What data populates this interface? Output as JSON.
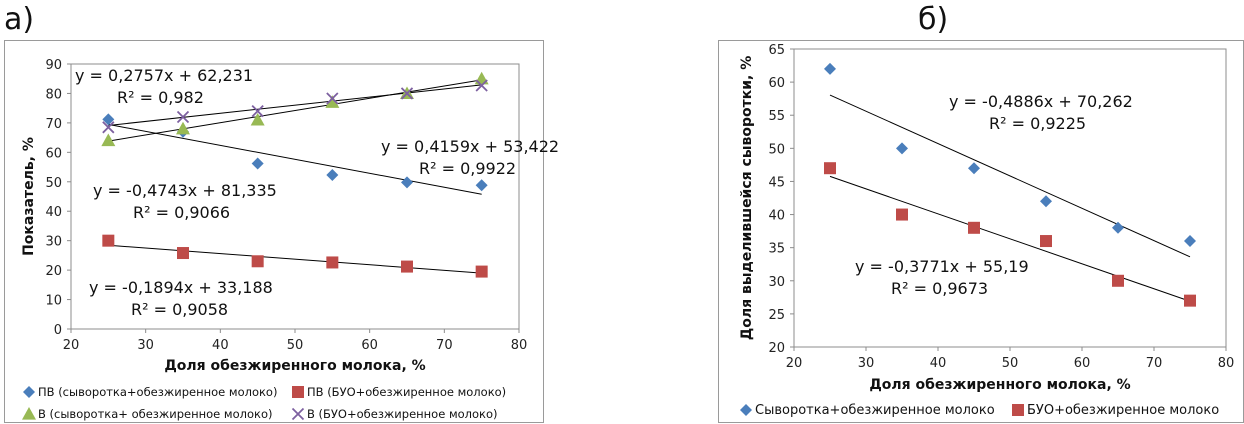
{
  "panel_labels": [
    "а)",
    "б)"
  ],
  "chart_data": [
    {
      "type": "scatter",
      "xlabel": "Доля обезжиренного молока, %",
      "ylabel": "Показатель, %",
      "xlim": [
        20,
        80
      ],
      "ylim": [
        0,
        90
      ],
      "x_ticks": [
        20,
        30,
        40,
        50,
        60,
        70,
        80
      ],
      "y_ticks": [
        0,
        10,
        20,
        30,
        40,
        50,
        60,
        70,
        80,
        90
      ],
      "grid": false,
      "legend_position": "bottom",
      "series": [
        {
          "name": "ПВ (сыворотка+обезжиренное молоко)",
          "marker": "diamond",
          "color": "#4a7ebb",
          "x": [
            25,
            35,
            45,
            55,
            65,
            75
          ],
          "y": [
            71.2,
            67,
            56.2,
            52.3,
            49.8,
            48.8
          ],
          "trendline": {
            "slope": -0.4743,
            "intercept": 81.335
          }
        },
        {
          "name": "ПВ (БУО+обезжиренное молоко)",
          "marker": "square",
          "color": "#be4b48",
          "x": [
            25,
            35,
            45,
            55,
            65,
            75
          ],
          "y": [
            30,
            25.8,
            23,
            22.6,
            21.2,
            19.5
          ],
          "trendline": {
            "slope": -0.1894,
            "intercept": 33.188
          }
        },
        {
          "name": "В (сыворотка+ обезжиренное молоко)",
          "marker": "triangle",
          "color": "#98b954",
          "x": [
            25,
            35,
            45,
            55,
            65,
            75
          ],
          "y": [
            64,
            68,
            71,
            77,
            80,
            85
          ],
          "trendline": {
            "slope": 0.4159,
            "intercept": 53.422
          }
        },
        {
          "name": "В (БУО+обезжиренное молоко)",
          "marker": "x",
          "color": "#7d60a0",
          "x": [
            25,
            35,
            45,
            55,
            65,
            75
          ],
          "y": [
            68.5,
            72,
            74,
            78.3,
            80,
            82.7
          ],
          "trendline": {
            "slope": 0.2757,
            "intercept": 62.231
          }
        }
      ],
      "annotations": [
        {
          "equation": "y = 0,2757x + 62,231",
          "r2": "R² = 0,982"
        },
        {
          "equation": "y = 0,4159x + 53,422",
          "r2": "R² = 0,9922"
        },
        {
          "equation": "y = -0,4743x + 81,335",
          "r2": "R² = 0,9066"
        },
        {
          "equation": "y = -0,1894x + 33,188",
          "r2": "R² = 0,9058"
        }
      ]
    },
    {
      "type": "scatter",
      "xlabel": "Доля обезжиренного молока, %",
      "ylabel": "Доля выделившейся сыворотки, %",
      "xlim": [
        20,
        80
      ],
      "ylim": [
        20,
        65
      ],
      "x_ticks": [
        20,
        30,
        40,
        50,
        60,
        70,
        80
      ],
      "y_ticks": [
        20,
        25,
        30,
        35,
        40,
        45,
        50,
        55,
        60,
        65
      ],
      "grid": false,
      "legend_position": "bottom",
      "series": [
        {
          "name": "Сыворотка+обезжиренное молоко",
          "marker": "diamond",
          "color": "#4a7ebb",
          "x": [
            25,
            35,
            45,
            55,
            65,
            75
          ],
          "y": [
            62,
            50,
            47,
            42,
            38,
            36
          ],
          "trendline": {
            "slope": -0.4886,
            "intercept": 70.262
          }
        },
        {
          "name": "БУО+обезжиренное молоко",
          "marker": "square",
          "color": "#be4b48",
          "x": [
            25,
            35,
            45,
            55,
            65,
            75
          ],
          "y": [
            47,
            40,
            38,
            36,
            30,
            27
          ],
          "trendline": {
            "slope": -0.3771,
            "intercept": 55.19
          }
        }
      ],
      "annotations": [
        {
          "equation": "y = -0,4886x + 70,262",
          "r2": "R² = 0,9225"
        },
        {
          "equation": "y = -0,3771x + 55,19",
          "r2": "R² = 0,9673"
        }
      ]
    }
  ]
}
